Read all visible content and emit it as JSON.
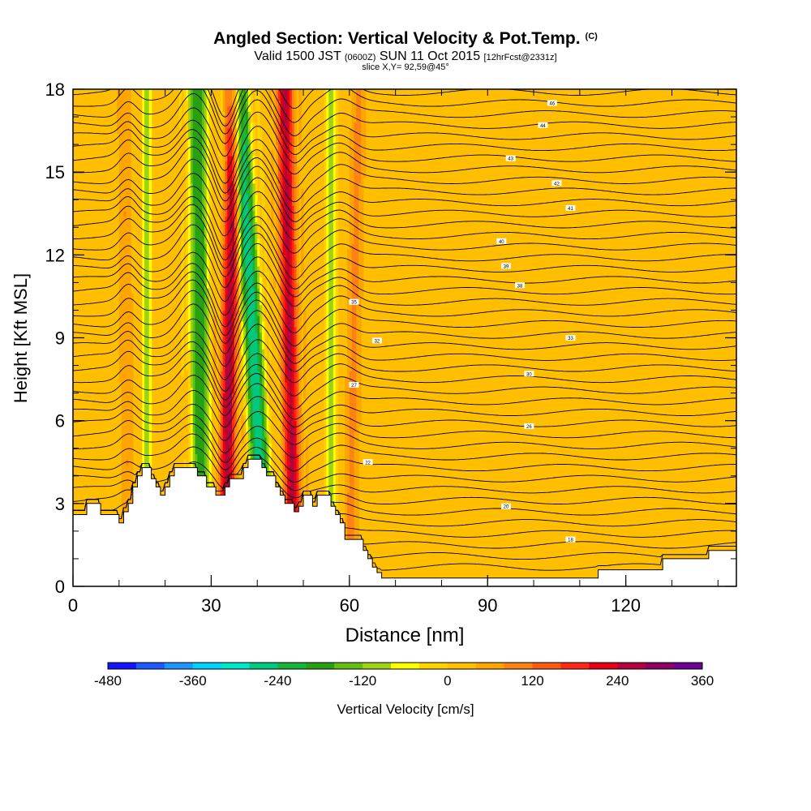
{
  "header": {
    "title": "Angled Section: Vertical Velocity & Pot.Temp.",
    "title_unit": "(C)",
    "valid_prefix": "Valid 1500 JST",
    "valid_utc": "(0600Z)",
    "valid_date": "SUN 11 Oct 2015",
    "valid_fcst": "[12hrFcst@2331z]",
    "slice": "slice X,Y= 92,59@45°"
  },
  "colorbar": {
    "label": "Vertical Velocity [cm/s]",
    "tick_labels": [
      "-480",
      "-360",
      "-240",
      "-120",
      "0",
      "120",
      "240",
      "360"
    ],
    "colors": [
      "#1414ff",
      "#1e5aff",
      "#1e96ff",
      "#00d2ff",
      "#00e6c8",
      "#00c87d",
      "#19b43c",
      "#28a014",
      "#64be14",
      "#a0d214",
      "#ffff00",
      "#ffd200",
      "#ffbe00",
      "#ffa500",
      "#ff8214",
      "#ff5a14",
      "#ff2814",
      "#e60014",
      "#b4003c",
      "#8c0064",
      "#6e0096"
    ]
  },
  "chart_data": {
    "type": "heatmap",
    "title": "Angled Section: Vertical Velocity & Pot.Temp.",
    "xlabel": "Distance [nm]",
    "ylabel": "Height [Kft MSL]",
    "xlim": [
      0,
      144
    ],
    "ylim": [
      0,
      18
    ],
    "x_ticks": [
      0,
      30,
      60,
      90,
      120
    ],
    "y_ticks": [
      0,
      3,
      6,
      9,
      12,
      15,
      18
    ],
    "fill_variable": "Vertical Velocity [cm/s]",
    "fill_range": [
      -480,
      360
    ],
    "background_velocity": 20,
    "velocity_bands": [
      {
        "center_bottom": 12,
        "center_top": 11,
        "half_width": 2.2,
        "value": 60
      },
      {
        "center_bottom": 16,
        "center_top": 16,
        "half_width": 1.5,
        "value": -150
      },
      {
        "center_bottom": 28,
        "center_top": 27,
        "half_width": 3.5,
        "value": -220
      },
      {
        "center_bottom": 33,
        "center_top": 35,
        "half_width": 3.0,
        "value": 250
      },
      {
        "center_bottom": 42,
        "center_top": 36,
        "half_width": 3.5,
        "value": -300
      },
      {
        "center_bottom": 48,
        "center_top": 46,
        "half_width": 3.0,
        "value": 230
      },
      {
        "center_bottom": 56,
        "center_top": 56,
        "half_width": 2.0,
        "value": -120
      },
      {
        "center_bottom": 60,
        "center_top": 62,
        "half_width": 2.5,
        "value": 70
      }
    ],
    "terrain": [
      {
        "x": 0,
        "z": 2.6
      },
      {
        "x": 3,
        "z": 2.6
      },
      {
        "x": 3,
        "z": 3.0
      },
      {
        "x": 6,
        "z": 3.0
      },
      {
        "x": 6,
        "z": 2.6
      },
      {
        "x": 10,
        "z": 2.6
      },
      {
        "x": 10,
        "z": 2.3
      },
      {
        "x": 11,
        "z": 2.3
      },
      {
        "x": 11,
        "z": 2.7
      },
      {
        "x": 12,
        "z": 2.7
      },
      {
        "x": 12,
        "z": 3.0
      },
      {
        "x": 13,
        "z": 3.0
      },
      {
        "x": 13,
        "z": 3.6
      },
      {
        "x": 14,
        "z": 3.6
      },
      {
        "x": 14,
        "z": 4.0
      },
      {
        "x": 15,
        "z": 4.0
      },
      {
        "x": 15,
        "z": 4.3
      },
      {
        "x": 17,
        "z": 4.3
      },
      {
        "x": 17,
        "z": 3.9
      },
      {
        "x": 18,
        "z": 3.9
      },
      {
        "x": 18,
        "z": 3.6
      },
      {
        "x": 19,
        "z": 3.6
      },
      {
        "x": 19,
        "z": 3.3
      },
      {
        "x": 20,
        "z": 3.3
      },
      {
        "x": 20,
        "z": 3.6
      },
      {
        "x": 21,
        "z": 3.6
      },
      {
        "x": 21,
        "z": 4.0
      },
      {
        "x": 22,
        "z": 4.0
      },
      {
        "x": 22,
        "z": 4.3
      },
      {
        "x": 27,
        "z": 4.3
      },
      {
        "x": 27,
        "z": 4.0
      },
      {
        "x": 29,
        "z": 4.0
      },
      {
        "x": 29,
        "z": 3.6
      },
      {
        "x": 31,
        "z": 3.6
      },
      {
        "x": 31,
        "z": 3.3
      },
      {
        "x": 33,
        "z": 3.3
      },
      {
        "x": 33,
        "z": 3.6
      },
      {
        "x": 34,
        "z": 3.6
      },
      {
        "x": 34,
        "z": 3.9
      },
      {
        "x": 37,
        "z": 3.9
      },
      {
        "x": 37,
        "z": 4.3
      },
      {
        "x": 38,
        "z": 4.3
      },
      {
        "x": 38,
        "z": 4.6
      },
      {
        "x": 41,
        "z": 4.6
      },
      {
        "x": 41,
        "z": 4.3
      },
      {
        "x": 42,
        "z": 4.3
      },
      {
        "x": 42,
        "z": 4.0
      },
      {
        "x": 44,
        "z": 4.0
      },
      {
        "x": 44,
        "z": 3.6
      },
      {
        "x": 45,
        "z": 3.6
      },
      {
        "x": 45,
        "z": 3.3
      },
      {
        "x": 46,
        "z": 3.3
      },
      {
        "x": 46,
        "z": 3.0
      },
      {
        "x": 48,
        "z": 3.0
      },
      {
        "x": 48,
        "z": 2.7
      },
      {
        "x": 49,
        "z": 2.7
      },
      {
        "x": 49,
        "z": 2.9
      },
      {
        "x": 50,
        "z": 2.9
      },
      {
        "x": 50,
        "z": 3.3
      },
      {
        "x": 52,
        "z": 3.3
      },
      {
        "x": 52,
        "z": 2.9
      },
      {
        "x": 53,
        "z": 2.9
      },
      {
        "x": 53,
        "z": 3.3
      },
      {
        "x": 56,
        "z": 3.3
      },
      {
        "x": 56,
        "z": 2.9
      },
      {
        "x": 57,
        "z": 2.9
      },
      {
        "x": 57,
        "z": 2.6
      },
      {
        "x": 58,
        "z": 2.6
      },
      {
        "x": 58,
        "z": 2.3
      },
      {
        "x": 59,
        "z": 2.3
      },
      {
        "x": 59,
        "z": 1.7
      },
      {
        "x": 63,
        "z": 1.7
      },
      {
        "x": 63,
        "z": 1.3
      },
      {
        "x": 64,
        "z": 1.3
      },
      {
        "x": 64,
        "z": 1.0
      },
      {
        "x": 65,
        "z": 1.0
      },
      {
        "x": 65,
        "z": 0.7
      },
      {
        "x": 66,
        "z": 0.7
      },
      {
        "x": 66,
        "z": 0.5
      },
      {
        "x": 67,
        "z": 0.5
      },
      {
        "x": 67,
        "z": 0.3
      },
      {
        "x": 114,
        "z": 0.3
      },
      {
        "x": 114,
        "z": 0.6
      },
      {
        "x": 128,
        "z": 0.6
      },
      {
        "x": 128,
        "z": 1.0
      },
      {
        "x": 138,
        "z": 1.0
      },
      {
        "x": 138,
        "z": 1.3
      },
      {
        "x": 144,
        "z": 1.3
      }
    ],
    "theta_contours": {
      "line_color": "#000000",
      "count": 44,
      "lowest_far_field_height": 0.7,
      "spacing": 0.4,
      "labels": [
        {
          "text": "18",
          "x": 108,
          "z": 1.7
        },
        {
          "text": "20",
          "x": 94,
          "z": 2.9
        },
        {
          "text": "22",
          "x": 64,
          "z": 4.5
        },
        {
          "text": "26",
          "x": 99,
          "z": 5.8
        },
        {
          "text": "27",
          "x": 61,
          "z": 7.3
        },
        {
          "text": "30",
          "x": 99,
          "z": 7.7
        },
        {
          "text": "32",
          "x": 66,
          "z": 8.9
        },
        {
          "text": "33",
          "x": 108,
          "z": 9.0
        },
        {
          "text": "35",
          "x": 61,
          "z": 10.3
        },
        {
          "text": "38",
          "x": 97,
          "z": 10.9
        },
        {
          "text": "39",
          "x": 94,
          "z": 11.6
        },
        {
          "text": "40",
          "x": 93,
          "z": 12.5
        },
        {
          "text": "41",
          "x": 108,
          "z": 13.7
        },
        {
          "text": "42",
          "x": 105,
          "z": 14.6
        },
        {
          "text": "43",
          "x": 95,
          "z": 15.5
        },
        {
          "text": "44",
          "x": 102,
          "z": 16.7
        },
        {
          "text": "46",
          "x": 104,
          "z": 17.5
        }
      ]
    },
    "grid": false
  }
}
